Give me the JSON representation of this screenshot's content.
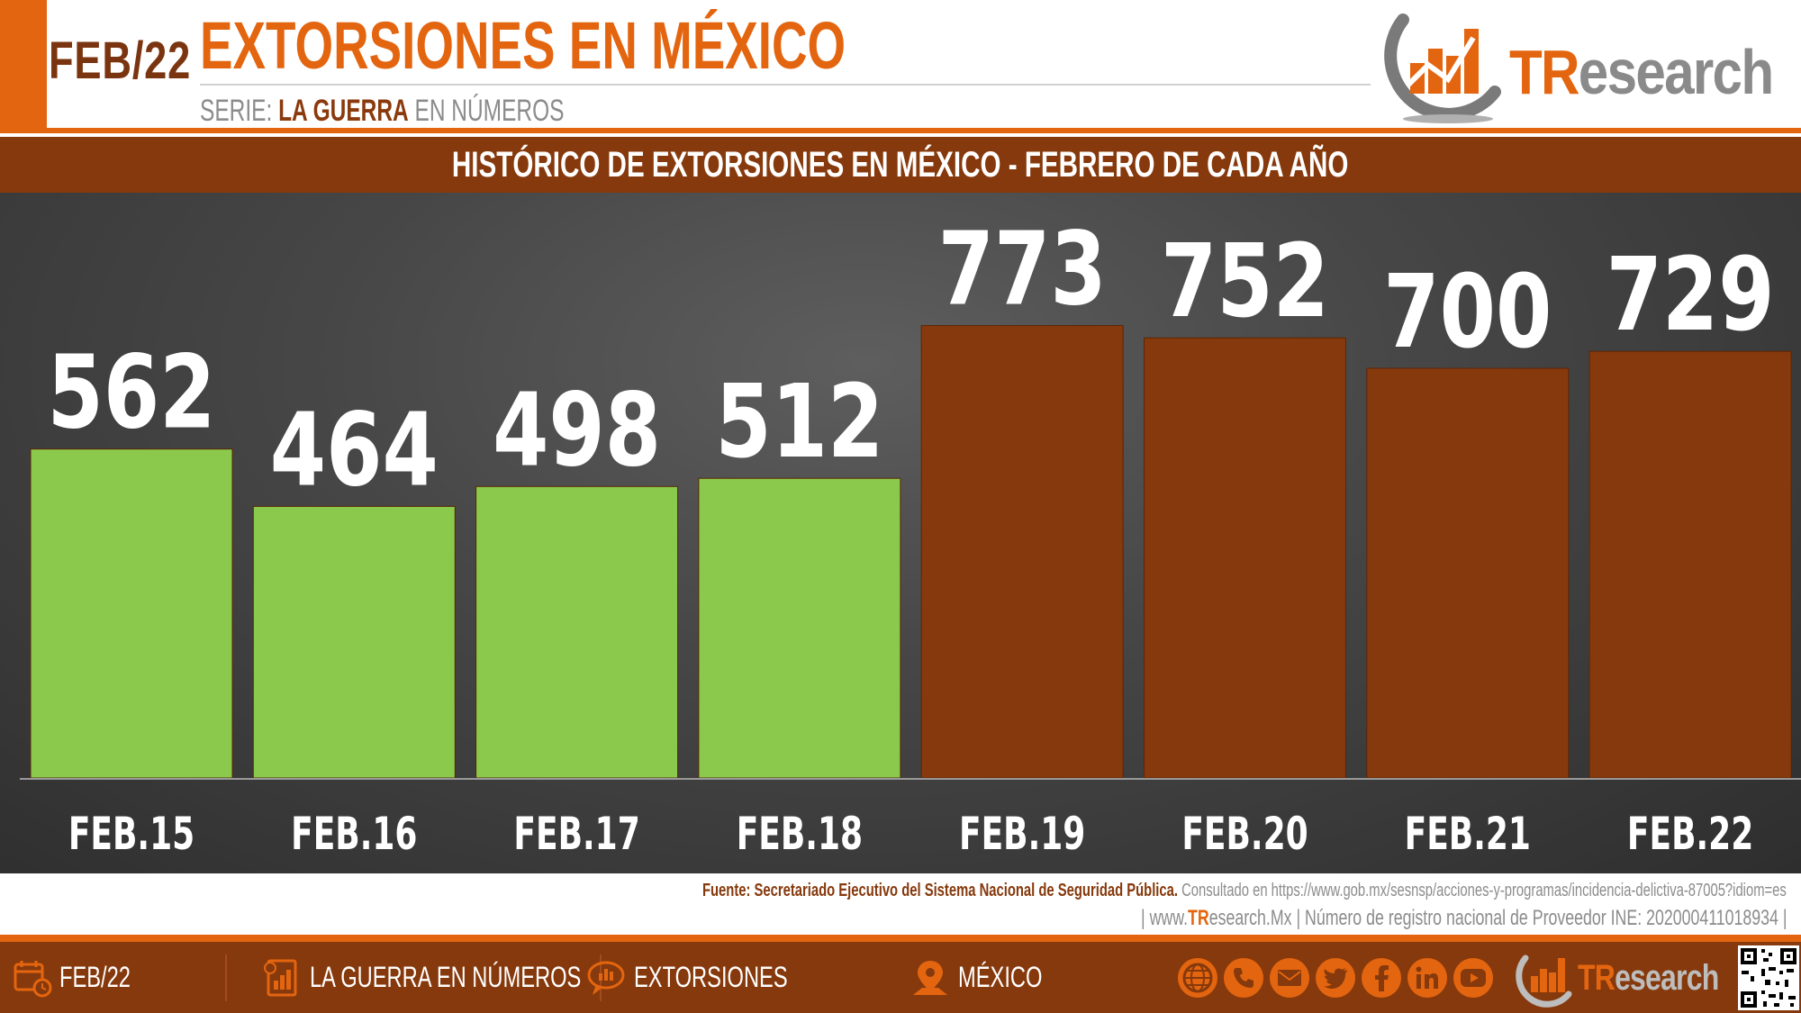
{
  "header": {
    "date": "FEB/22",
    "title": "EXTORSIONES EN MÉXICO",
    "serie_prefix": "SERIE:",
    "serie_highlight": "LA GUERRA",
    "serie_suffix": "EN NÚMEROS",
    "logo_tr": "TR",
    "logo_rest": "esearch"
  },
  "chart_data": {
    "type": "bar",
    "title": "HISTÓRICO DE EXTORSIONES EN MÉXICO -  FEBRERO DE CADA AÑO",
    "categories": [
      "FEB.15",
      "FEB.16",
      "FEB.17",
      "FEB.18",
      "FEB.19",
      "FEB.20",
      "FEB.21",
      "FEB.22"
    ],
    "values": [
      562,
      464,
      498,
      512,
      773,
      752,
      700,
      729
    ],
    "bar_colors": [
      "#8bc94c",
      "#8bc94c",
      "#8bc94c",
      "#8bc94c",
      "#86390c",
      "#86390c",
      "#86390c",
      "#86390c"
    ],
    "xlabel": "",
    "ylabel": "",
    "ylim": [
      0,
      1000
    ],
    "grid": false,
    "data_labels": true
  },
  "source": {
    "label": "Fuente: Secretariado Ejecutivo del Sistema Nacional de Seguridad Pública.",
    "consulted": "Consultado en https://www.gob.mx/sesnsp/acciones-y-programas/incidencia-delictiva-87005?idiom=es",
    "pipe_open": "| www.",
    "site_tr": "TR",
    "site_rest": "esearch.Mx",
    "registry": "| Número de registro nacional de Proveedor INE: 202000411018934  |"
  },
  "footer": {
    "date": "FEB/22",
    "series": "LA GUERRA EN NÚMEROS",
    "topic": "EXTORSIONES",
    "place": "MÉXICO",
    "logo_tr": "TR",
    "logo_rest": "esearch",
    "social_icons": [
      "globe-icon",
      "phone-icon",
      "mail-icon",
      "twitter-icon",
      "facebook-icon",
      "linkedin-icon",
      "youtube-icon"
    ]
  },
  "colors": {
    "accent_orange": "#e4650f",
    "brown": "#86390c",
    "green_bar": "#8bc94c"
  }
}
